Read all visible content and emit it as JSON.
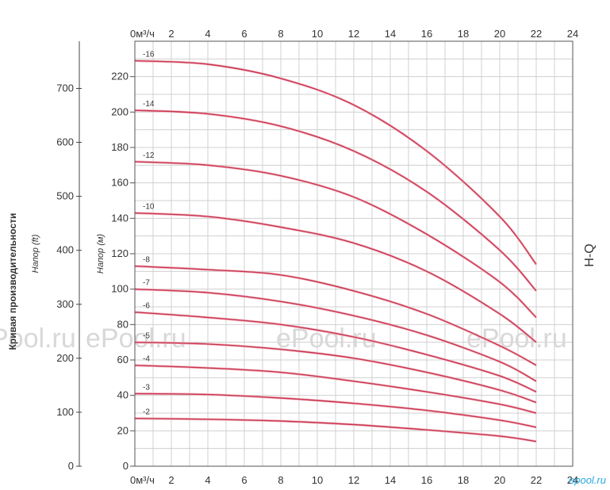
{
  "chart_data": {
    "type": "line",
    "title": "",
    "side_title": "Кривая производительности",
    "curve_label": "H-Q",
    "xlabel": "м³/ч",
    "ylabel": "Напор (м)",
    "ylabel_ft": "Напор (ft)",
    "xlim": [
      0,
      24
    ],
    "ylim": [
      0,
      240
    ],
    "ft_lim": [
      0,
      787.4
    ],
    "x_ticks": [
      "0м³/ч",
      "2",
      "4",
      "6",
      "8",
      "10",
      "12",
      "14",
      "16",
      "18",
      "20",
      "22",
      "24"
    ],
    "y_ticks": [
      "0",
      "20",
      "40",
      "60",
      "80",
      "100",
      "120",
      "140",
      "160",
      "180",
      "200",
      "220"
    ],
    "ft_ticks": [
      "0",
      "100",
      "200",
      "300",
      "400",
      "500",
      "600",
      "700"
    ],
    "grid": true,
    "line_color": "#c8364f",
    "series": [
      {
        "name": "-2",
        "x": [
          0,
          4,
          8,
          12,
          16,
          20,
          22
        ],
        "y": [
          27,
          26.5,
          25.5,
          23.5,
          20.5,
          17,
          14
        ]
      },
      {
        "name": "-3",
        "x": [
          0,
          4,
          8,
          12,
          16,
          20,
          22
        ],
        "y": [
          41,
          40.5,
          38.5,
          35.5,
          31.5,
          26,
          22
        ]
      },
      {
        "name": "-4",
        "x": [
          0,
          4,
          8,
          12,
          16,
          20,
          22
        ],
        "y": [
          57,
          55.5,
          53,
          48,
          42,
          35,
          30
        ]
      },
      {
        "name": "-5",
        "x": [
          0,
          4,
          8,
          12,
          16,
          20,
          22
        ],
        "y": [
          70,
          69,
          66,
          61,
          53,
          43,
          36
        ]
      },
      {
        "name": "-6",
        "x": [
          0,
          4,
          8,
          12,
          16,
          20,
          22
        ],
        "y": [
          87,
          84,
          80,
          73,
          63,
          51,
          42
        ]
      },
      {
        "name": "-7",
        "x": [
          0,
          4,
          8,
          12,
          16,
          20,
          22
        ],
        "y": [
          100,
          98,
          93,
          85,
          74,
          59,
          48
        ]
      },
      {
        "name": "-8",
        "x": [
          0,
          4,
          8,
          12,
          16,
          20,
          22
        ],
        "y": [
          113,
          111,
          108,
          99,
          86,
          68,
          57
        ]
      },
      {
        "name": "-10",
        "x": [
          0,
          4,
          8,
          12,
          16,
          20,
          22
        ],
        "y": [
          143,
          141,
          135,
          126,
          110,
          86,
          70
        ]
      },
      {
        "name": "-12",
        "x": [
          0,
          4,
          8,
          12,
          16,
          20,
          22
        ],
        "y": [
          172,
          170,
          164,
          152,
          131,
          104,
          84
        ]
      },
      {
        "name": "-14",
        "x": [
          0,
          4,
          8,
          12,
          16,
          20,
          22
        ],
        "y": [
          201,
          199,
          192,
          178,
          155,
          122,
          99
        ]
      },
      {
        "name": "-16",
        "x": [
          0,
          4,
          8,
          12,
          16,
          20,
          22
        ],
        "y": [
          229,
          227,
          219,
          204,
          178,
          141,
          114
        ]
      }
    ]
  },
  "watermarks": [
    "Pool.ru",
    "ePool.ru",
    "ePool.ru",
    "ePool.ru"
  ],
  "corner_logo": "epool.ru"
}
